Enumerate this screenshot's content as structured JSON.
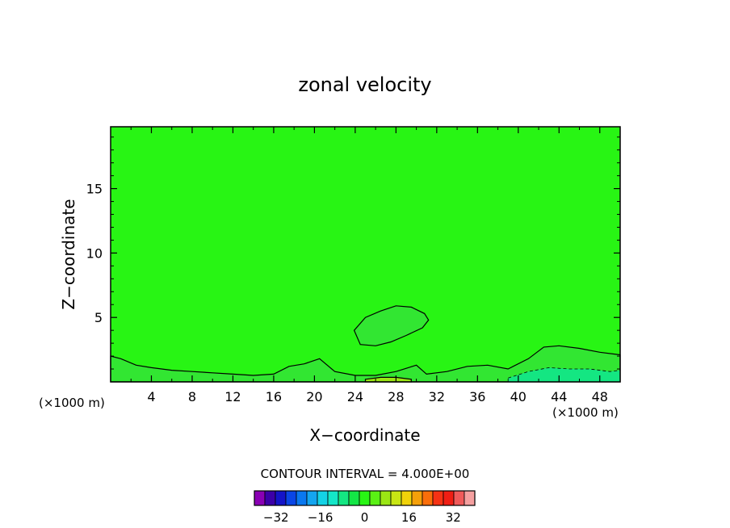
{
  "chart_data": {
    "type": "heatmap",
    "title": "zonal velocity",
    "xlabel": "X−coordinate",
    "ylabel": "Z−coordinate",
    "x_unit_left": "(×1000 m)",
    "x_unit_right": "(×1000 m)",
    "xlim": [
      0,
      50
    ],
    "ylim": [
      0,
      19.8
    ],
    "x_ticks": [
      4,
      8,
      12,
      16,
      20,
      24,
      28,
      32,
      36,
      40,
      44,
      48
    ],
    "x_tick_labels": [
      "4",
      "8",
      "12",
      "16",
      "20",
      "24",
      "28",
      "32",
      "36",
      "40",
      "44",
      "48"
    ],
    "y_ticks": [
      5,
      10,
      15
    ],
    "y_tick_labels": [
      "5",
      "10",
      "15"
    ],
    "background_value": 0,
    "contour_interval_label": "CONTOUR INTERVAL = 4.000E+00",
    "colorbar": {
      "levels": [
        -36,
        -32,
        -28,
        -24,
        -20,
        -16,
        -12,
        -8,
        -4,
        0,
        4,
        8,
        12,
        16,
        20,
        24,
        28,
        32,
        36
      ],
      "colors": [
        "#8a00b4",
        "#3c00a8",
        "#1414c8",
        "#0a46e6",
        "#0a78f0",
        "#14a5f0",
        "#14d2e6",
        "#14e6c8",
        "#14e682",
        "#14e646",
        "#28f514",
        "#5af014",
        "#9be614",
        "#c8e614",
        "#f0d20a",
        "#f5a00a",
        "#fa6e0a",
        "#f53214",
        "#f01e14",
        "#f05a5a",
        "#f5a0a0"
      ],
      "tick_labels": [
        "−32",
        "−16",
        "0",
        "16",
        "32"
      ],
      "tick_values": [
        -32,
        -16,
        0,
        16,
        32
      ]
    },
    "features": [
      {
        "name": "upper-blob",
        "value": 4,
        "color": "#32e632",
        "x": [
          23.9,
          25.0,
          26.5,
          28.0,
          29.5,
          30.8,
          31.2,
          30.6,
          29.0,
          27.5,
          26.0,
          24.5,
          23.9
        ],
        "y": [
          4.0,
          5.0,
          5.5,
          5.9,
          5.8,
          5.3,
          4.8,
          4.2,
          3.6,
          3.1,
          2.8,
          2.9,
          4.0
        ]
      },
      {
        "name": "surface-layer",
        "value": 4,
        "color": "#32e632",
        "x": [
          0,
          1.0,
          2.5,
          4.0,
          6.0,
          8.0,
          10.0,
          12.0,
          14.0,
          16.0,
          17.5,
          19.0,
          20.5,
          22.0,
          24.0,
          26.0,
          28.0,
          30.0,
          31.0,
          33.0,
          35.0,
          37.0,
          39.0,
          41.0,
          42.5,
          44.0,
          46.0,
          48.0,
          50.0,
          50.0,
          0
        ],
        "y": [
          2.0,
          1.8,
          1.3,
          1.1,
          0.9,
          0.8,
          0.7,
          0.6,
          0.5,
          0.6,
          1.2,
          1.4,
          1.8,
          0.8,
          0.5,
          0.5,
          0.8,
          1.3,
          0.6,
          0.8,
          1.2,
          1.3,
          1.0,
          1.8,
          2.7,
          2.8,
          2.6,
          2.3,
          2.1,
          0,
          0
        ]
      },
      {
        "name": "negative-dashed-1",
        "value": -4,
        "color": "#14e682",
        "x": [
          39.0,
          41.0,
          43.0,
          45.0,
          47.0,
          49.0,
          50.0,
          50.0,
          39.0
        ],
        "y": [
          0.3,
          0.8,
          1.1,
          1.0,
          1.0,
          0.8,
          0.9,
          0,
          0
        ]
      },
      {
        "name": "positive-core",
        "value": 8,
        "color": "#9be614",
        "x": [
          25.0,
          26.5,
          28.0,
          29.5,
          29.5,
          25.0
        ],
        "y": [
          0.2,
          0.35,
          0.35,
          0.2,
          0,
          0
        ]
      }
    ]
  }
}
